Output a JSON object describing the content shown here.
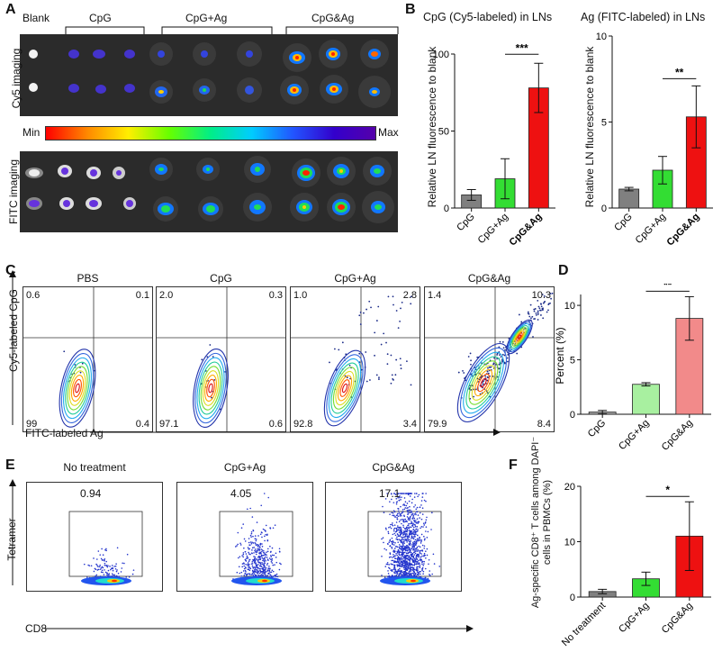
{
  "panelA": {
    "label": "A",
    "groups": [
      "Blank",
      "CpG",
      "CpG+Ag",
      "CpG&Ag"
    ],
    "row_labels": [
      "Cy5 imaging",
      "FITC imaging"
    ],
    "scale_min": "Min",
    "scale_max": "Max"
  },
  "panelB": {
    "label": "B",
    "left_title": "CpG (Cy5-labeled) in LNs",
    "right_title": "Ag (FITC-labeled) in LNs",
    "ylabel": "Relative LN fluorescence to blank"
  },
  "panelC": {
    "label": "C",
    "ylabel": "Cy5-labeled CpG",
    "xlabel": "FITC-labeled Ag",
    "plots": [
      {
        "title": "PBS",
        "ul": "0.6",
        "ur": "0.1",
        "ll": "99",
        "lr": "0.4"
      },
      {
        "title": "CpG",
        "ul": "2.0",
        "ur": "0.3",
        "ll": "97.1",
        "lr": "0.6"
      },
      {
        "title": "CpG+Ag",
        "ul": "1.0",
        "ur": "2.8",
        "ll": "92.8",
        "lr": "3.4"
      },
      {
        "title": "CpG&Ag",
        "ul": "1.4",
        "ur": "10.3",
        "ll": "79.9",
        "lr": "8.4"
      }
    ]
  },
  "panelD": {
    "label": "D"
  },
  "panelE": {
    "label": "E",
    "ylabel": "Tetramer",
    "xlabel": "CD8",
    "plots": [
      {
        "title": "No treatment",
        "value": "0.94"
      },
      {
        "title": "CpG+Ag",
        "value": "4.05"
      },
      {
        "title": "CpG&Ag",
        "value": "17.1"
      }
    ]
  },
  "panelF": {
    "label": "F"
  },
  "chart_data": [
    {
      "id": "B-left",
      "type": "bar",
      "title": "CpG (Cy5-labeled) in LNs",
      "ylabel": "Relative LN fluorescence to blank",
      "categories": [
        "CpG",
        "CpG+Ag",
        "CpG&Ag"
      ],
      "values": [
        8.5,
        19,
        78
      ],
      "errors": [
        3.5,
        13,
        16
      ],
      "colors": [
        "#808080",
        "#33dd33",
        "#ee1111"
      ],
      "ylim": [
        0,
        100
      ],
      "yticks": [
        0,
        50,
        100
      ],
      "significance": [
        {
          "from": 1,
          "to": 2,
          "label": "***"
        }
      ]
    },
    {
      "id": "B-right",
      "type": "bar",
      "title": "Ag (FITC-labeled) in LNs",
      "ylabel": "Relative LN fluorescence to blank",
      "categories": [
        "CpG",
        "CpG+Ag",
        "CpG&Ag"
      ],
      "values": [
        1.1,
        2.2,
        5.3
      ],
      "errors": [
        0.1,
        0.8,
        1.8
      ],
      "colors": [
        "#808080",
        "#33dd33",
        "#ee1111"
      ],
      "ylim": [
        0,
        10
      ],
      "yticks": [
        0,
        5,
        10
      ],
      "significance": [
        {
          "from": 1,
          "to": 2,
          "label": "**"
        }
      ]
    },
    {
      "id": "D",
      "type": "bar",
      "title": "",
      "ylabel": "Percent (%)",
      "categories": [
        "CpG",
        "CpG+Ag",
        "CpG&Ag"
      ],
      "values": [
        0.2,
        2.75,
        8.8
      ],
      "errors": [
        0.15,
        0.15,
        2.0
      ],
      "colors": [
        "#a6a6a6",
        "#a8f0a0",
        "#f28a8a"
      ],
      "ylim": [
        0,
        11
      ],
      "yticks": [
        0,
        5,
        10
      ],
      "significance": [
        {
          "from": 1,
          "to": 2,
          "label": "**"
        }
      ]
    },
    {
      "id": "F",
      "type": "bar",
      "title": "",
      "ylabel": "Ag-specific CD8⁺ T cells among DAPI⁻ cells in PBMCs (%)",
      "categories": [
        "No treatment",
        "CpG+Ag",
        "CpG&Ag"
      ],
      "values": [
        1.0,
        3.3,
        11.0
      ],
      "errors": [
        0.4,
        1.2,
        6.2
      ],
      "colors": [
        "#808080",
        "#33dd33",
        "#ee1111"
      ],
      "ylim": [
        0,
        20
      ],
      "yticks": [
        0,
        10,
        20
      ],
      "significance": [
        {
          "from": 1,
          "to": 2,
          "label": "*"
        }
      ]
    }
  ]
}
